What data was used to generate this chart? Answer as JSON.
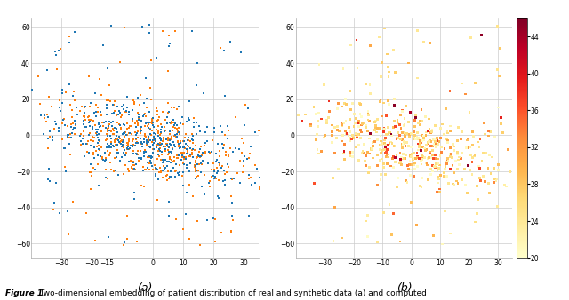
{
  "title_bold": "Figure 1.",
  "title_rest": " Two-dimensional embedding of patient distribution of real and synthetic data (a) and computed",
  "subplot_a_label": "(a)",
  "subplot_b_label": "(b)",
  "xlim_a": [
    -40,
    35
  ],
  "ylim_a": [
    -68,
    65
  ],
  "xlim_b": [
    -40,
    35
  ],
  "ylim_b": [
    -68,
    65
  ],
  "xticks_a": [
    -30,
    -20,
    -15,
    0,
    10,
    20,
    30
  ],
  "xticks_b": [
    -30,
    -20,
    -10,
    0,
    10,
    20,
    30
  ],
  "yticks": [
    -60,
    -40,
    -20,
    0,
    20,
    40,
    60
  ],
  "colorbar_min": 20,
  "colorbar_max": 46,
  "colorbar_ticks": [
    20,
    24,
    28,
    32,
    36,
    40,
    44
  ],
  "n_points": 500,
  "real_color": "#1f77b4",
  "synth_color": "#ff7f0e",
  "seed": 42,
  "bg_color": "#ffffff",
  "grid_color": "#cccccc",
  "marker_size": 4
}
